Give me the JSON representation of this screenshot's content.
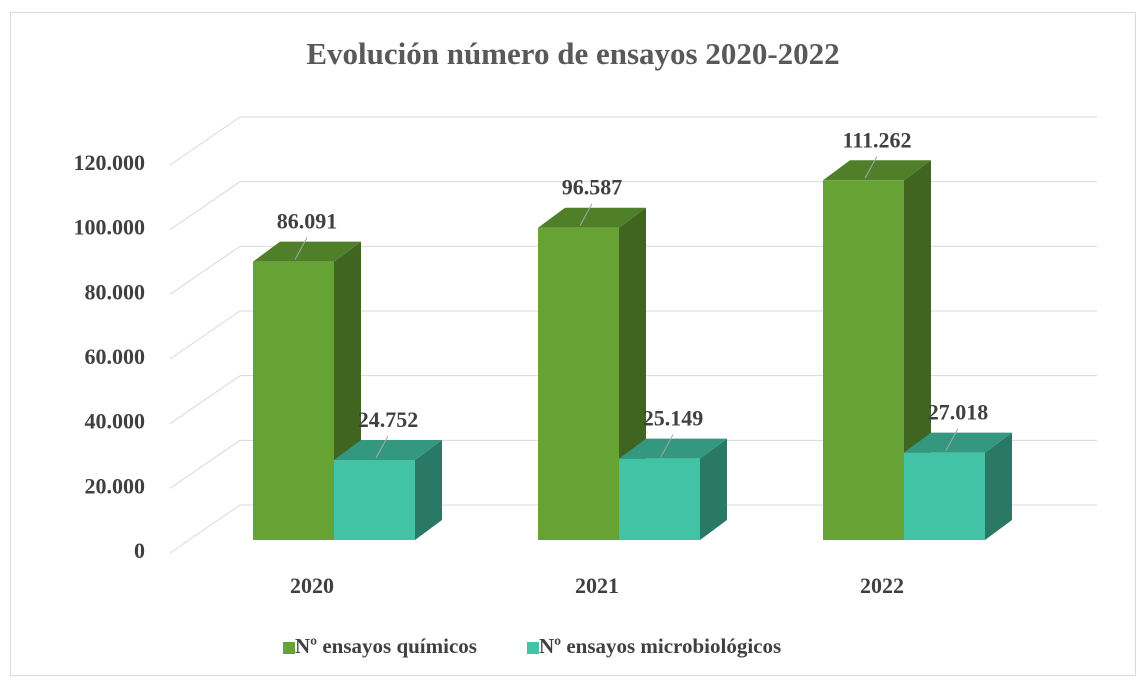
{
  "chart_data": {
    "type": "bar",
    "title": "Evolución número de ensayos 2020-2022",
    "categories": [
      "2020",
      "2021",
      "2022"
    ],
    "series": [
      {
        "name": "Nº ensayos químicos",
        "color": "#66a334",
        "values": [
          86091,
          96587,
          111262
        ],
        "value_labels": [
          "86.091",
          "96.587",
          "111.262"
        ]
      },
      {
        "name": "Nº ensayos microbiológicos",
        "color": "#43c3a5",
        "values": [
          24752,
          25149,
          27018
        ],
        "value_labels": [
          "24.752",
          "25.149",
          "27.018"
        ]
      }
    ],
    "ylim": [
      0,
      120000
    ],
    "yticks": [
      0,
      {
        "value": 20000,
        "label": "20.000"
      },
      {
        "value": 40000,
        "label": "40.000"
      },
      {
        "value": 60000,
        "label": "60.000"
      },
      {
        "value": 80000,
        "label": "80.000"
      },
      {
        "value": 100000,
        "label": "100.000"
      },
      {
        "value": 120000,
        "label": "120.000"
      }
    ],
    "grid": true,
    "legend": "bottom"
  }
}
